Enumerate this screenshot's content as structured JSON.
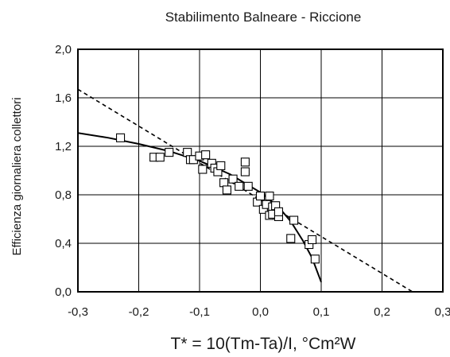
{
  "chart_data": {
    "type": "scatter",
    "title": "Stabilimento Balneare - Riccione",
    "xlabel": "T* = 10(Tm-Ta)/I, °Cm²W",
    "ylabel": "Efficienza giornaliera collettori",
    "xlim": [
      -0.3,
      0.3
    ],
    "ylim": [
      0.0,
      2.0
    ],
    "x_ticks": [
      -0.3,
      -0.2,
      -0.1,
      0.0,
      0.1,
      0.2,
      0.3
    ],
    "x_tick_labels": [
      "-0,3",
      "-0,2",
      "-0,1",
      "0,0",
      "0,1",
      "0,2",
      "0,3"
    ],
    "y_ticks": [
      0.0,
      0.4,
      0.8,
      1.2,
      1.6,
      2.0
    ],
    "y_tick_labels": [
      "0,0",
      "0,4",
      "0,8",
      "1,2",
      "1,6",
      "2,0"
    ],
    "grid": true,
    "colors": {
      "axis": "#000000",
      "grid": "#000000",
      "marker": "#000000",
      "text": "#1a1a1a"
    },
    "series": [
      {
        "kind": "points",
        "marker": "square-open",
        "x": [
          -0.23,
          -0.175,
          -0.165,
          -0.15,
          -0.12,
          -0.115,
          -0.11,
          -0.1,
          -0.095,
          -0.09,
          -0.08,
          -0.075,
          -0.07,
          -0.065,
          -0.06,
          -0.055,
          -0.045,
          -0.035,
          -0.025,
          -0.025,
          -0.02,
          -0.005,
          0.0,
          0.005,
          0.01,
          0.015,
          0.015,
          0.02,
          0.02,
          0.025,
          0.03,
          0.03,
          0.05,
          0.055,
          0.08,
          0.085,
          0.09
        ],
        "y": [
          1.27,
          1.11,
          1.11,
          1.15,
          1.15,
          1.09,
          1.09,
          1.12,
          1.01,
          1.13,
          1.06,
          1.02,
          0.99,
          1.04,
          0.9,
          0.84,
          0.93,
          0.87,
          0.99,
          1.07,
          0.87,
          0.74,
          0.79,
          0.68,
          0.72,
          0.79,
          0.63,
          0.7,
          0.64,
          0.71,
          0.62,
          0.66,
          0.44,
          0.59,
          0.39,
          0.43,
          0.27
        ]
      },
      {
        "kind": "line",
        "style": "dashed",
        "x": [
          -0.3,
          0.25
        ],
        "y": [
          1.67,
          0.0
        ]
      },
      {
        "kind": "line",
        "style": "solid",
        "x": [
          -0.3,
          -0.25,
          -0.2,
          -0.15,
          -0.1,
          -0.05,
          0.0,
          0.03,
          0.05,
          0.07,
          0.085,
          0.1
        ],
        "y": [
          1.31,
          1.27,
          1.22,
          1.16,
          1.08,
          0.97,
          0.82,
          0.7,
          0.58,
          0.42,
          0.28,
          0.08
        ]
      }
    ]
  }
}
